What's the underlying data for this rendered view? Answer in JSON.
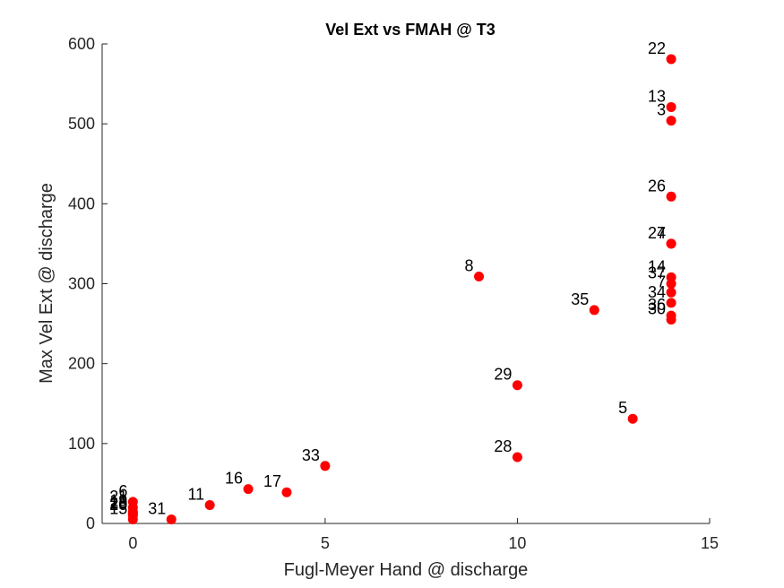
{
  "chart_data": {
    "type": "scatter",
    "title": "Vel Ext vs FMAH @ T3",
    "xlabel": "Fugl-Meyer Hand @ discharge",
    "ylabel": "Max Vel Ext @ discharge",
    "xlim": [
      -0.8,
      15
    ],
    "ylim": [
      0,
      600
    ],
    "xticks": [
      0,
      5,
      10,
      15
    ],
    "yticks": [
      0,
      100,
      200,
      300,
      400,
      500,
      600
    ],
    "xtick_labels": [
      "0",
      "5",
      "10",
      "15"
    ],
    "ytick_labels": [
      "0",
      "100",
      "200",
      "300",
      "400",
      "500",
      "600"
    ],
    "grid": false,
    "marker_color": "#ff0000",
    "points": [
      {
        "label": "22",
        "x": 14,
        "y": 581
      },
      {
        "label": "13",
        "x": 14,
        "y": 521
      },
      {
        "label": "3",
        "x": 14,
        "y": 504
      },
      {
        "label": "26",
        "x": 14,
        "y": 409
      },
      {
        "label": "27",
        "x": 14,
        "y": 350
      },
      {
        "label": "4",
        "x": 14,
        "y": 350
      },
      {
        "label": "14",
        "x": 14,
        "y": 308
      },
      {
        "label": "37",
        "x": 14,
        "y": 300
      },
      {
        "label": "7",
        "x": 14,
        "y": 289
      },
      {
        "label": "34",
        "x": 14,
        "y": 276
      },
      {
        "label": "36",
        "x": 14,
        "y": 260
      },
      {
        "label": "30",
        "x": 14,
        "y": 255
      },
      {
        "label": "8",
        "x": 9,
        "y": 309
      },
      {
        "label": "35",
        "x": 12,
        "y": 267
      },
      {
        "label": "29",
        "x": 10,
        "y": 173
      },
      {
        "label": "5",
        "x": 13,
        "y": 131
      },
      {
        "label": "28",
        "x": 10,
        "y": 83
      },
      {
        "label": "33",
        "x": 5,
        "y": 72
      },
      {
        "label": "16",
        "x": 3,
        "y": 43
      },
      {
        "label": "17",
        "x": 4,
        "y": 39
      },
      {
        "label": "11",
        "x": 2,
        "y": 23
      },
      {
        "label": "31",
        "x": 1,
        "y": 5
      },
      {
        "label": "6",
        "x": 0,
        "y": 27
      },
      {
        "label": "21",
        "x": 0,
        "y": 20
      },
      {
        "label": "19",
        "x": 0,
        "y": 15
      },
      {
        "label": "18",
        "x": 0,
        "y": 13
      },
      {
        "label": "25",
        "x": 0,
        "y": 12
      },
      {
        "label": "20",
        "x": 0,
        "y": 10
      },
      {
        "label": "15",
        "x": 0,
        "y": 5
      }
    ]
  }
}
